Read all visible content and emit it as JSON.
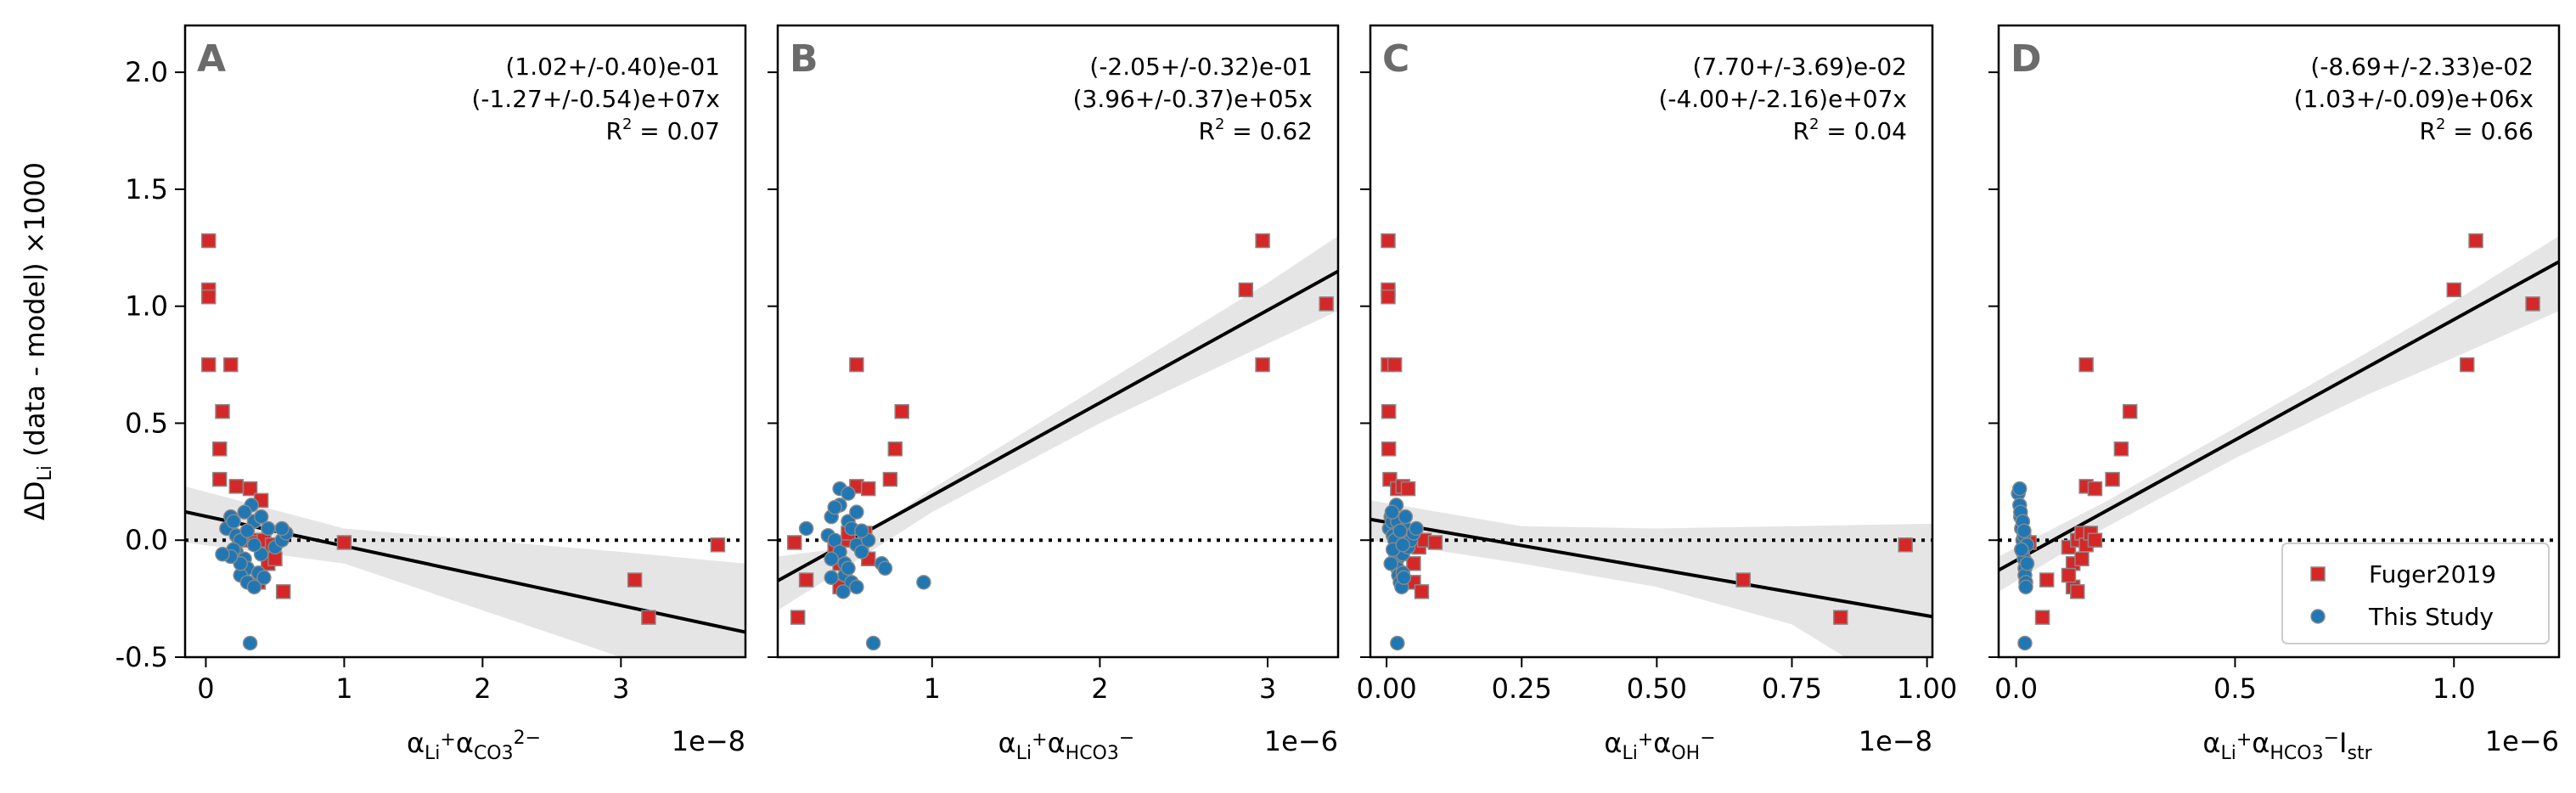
{
  "figure": {
    "ylabel": {
      "text": "ΔD",
      "sub": "Li",
      "rest": " (data - model) ×1000"
    },
    "legend": [
      {
        "label": "Fuger2019",
        "color": "#d62728",
        "marker": "square"
      },
      {
        "label": "This Study",
        "color": "#1f77b4",
        "marker": "circle"
      }
    ]
  },
  "chart_data": [
    {
      "panel": "A",
      "type": "scatter",
      "xlim": [
        -0.15,
        3.9
      ],
      "ylim": [
        -0.5,
        2.2
      ],
      "xticks": [
        0,
        1,
        2,
        3
      ],
      "yticks": [
        -0.5,
        0.0,
        0.5,
        1.0,
        1.5,
        2.0
      ],
      "offset": "1e−8",
      "xlabel_parts": [
        "α",
        "Li",
        "+",
        "α",
        "CO",
        "3",
        "2−"
      ],
      "annotation": [
        "(1.02+/-0.40)e-01",
        "(-1.27+/-0.54)e+07x",
        "R",
        "2",
        " = 0.07"
      ],
      "fit": {
        "intercept": 0.102,
        "slope": -0.127
      },
      "band": [
        [
          -0.15,
          0.23,
          -0.01
        ],
        [
          1.0,
          0.05,
          -0.1
        ],
        [
          2.0,
          0.0,
          -0.3
        ],
        [
          3.0,
          -0.05,
          -0.5
        ],
        [
          3.9,
          -0.1,
          -0.7
        ]
      ],
      "series": [
        {
          "name": "Fuger2019",
          "points": [
            [
              0.02,
              1.28
            ],
            [
              0.02,
              1.07
            ],
            [
              0.02,
              1.04
            ],
            [
              0.02,
              0.75
            ],
            [
              0.12,
              0.55
            ],
            [
              0.1,
              0.39
            ],
            [
              0.1,
              0.26
            ],
            [
              0.18,
              0.75
            ],
            [
              0.22,
              0.23
            ],
            [
              0.32,
              0.22
            ],
            [
              0.4,
              0.17
            ],
            [
              0.32,
              0.0
            ],
            [
              0.36,
              -0.01
            ],
            [
              0.42,
              -0.03
            ],
            [
              0.38,
              -0.18
            ],
            [
              0.45,
              -0.1
            ],
            [
              0.42,
              0.0
            ],
            [
              0.48,
              -0.02
            ],
            [
              0.56,
              -0.22
            ],
            [
              0.5,
              -0.08
            ],
            [
              1.0,
              -0.01
            ],
            [
              3.1,
              -0.17
            ],
            [
              3.2,
              -0.33
            ],
            [
              3.7,
              -0.02
            ]
          ]
        },
        {
          "name": "This Study",
          "points": [
            [
              0.15,
              0.05
            ],
            [
              0.18,
              0.1
            ],
            [
              0.2,
              0.08
            ],
            [
              0.22,
              0.02
            ],
            [
              0.25,
              0.0
            ],
            [
              0.22,
              -0.05
            ],
            [
              0.28,
              -0.08
            ],
            [
              0.3,
              -0.12
            ],
            [
              0.25,
              -0.15
            ],
            [
              0.3,
              -0.18
            ],
            [
              0.35,
              -0.2
            ],
            [
              0.38,
              -0.14
            ],
            [
              0.4,
              -0.06
            ],
            [
              0.33,
              0.15
            ],
            [
              0.35,
              0.08
            ],
            [
              0.45,
              0.05
            ],
            [
              0.5,
              -0.03
            ],
            [
              0.55,
              0.0
            ],
            [
              0.58,
              0.03
            ],
            [
              0.55,
              0.05
            ],
            [
              0.32,
              -0.44
            ],
            [
              0.28,
              0.12
            ],
            [
              0.25,
              -0.1
            ],
            [
              0.2,
              -0.04
            ],
            [
              0.18,
              -0.07
            ],
            [
              0.12,
              -0.06
            ],
            [
              0.3,
              0.04
            ],
            [
              0.35,
              -0.02
            ],
            [
              0.42,
              -0.16
            ],
            [
              0.4,
              0.1
            ]
          ]
        }
      ]
    },
    {
      "panel": "B",
      "type": "scatter",
      "xlim": [
        0.08,
        3.42
      ],
      "ylim": [
        -0.5,
        2.2
      ],
      "xticks": [
        1,
        2,
        3
      ],
      "yticks": [
        -0.5,
        0.0,
        0.5,
        1.0,
        1.5,
        2.0
      ],
      "offset": "1e−6",
      "xlabel_parts": [
        "α",
        "Li",
        "+",
        "α",
        "HCO",
        "3",
        "−"
      ],
      "annotation": [
        "(-2.05+/-0.32)e-01",
        "(3.96+/-0.37)e+05x",
        "R",
        "2",
        " = 0.62"
      ],
      "fit": {
        "intercept": -0.205,
        "slope": 0.396
      },
      "band": [
        [
          0.08,
          -0.07,
          -0.3
        ],
        [
          0.5,
          -0.03,
          -0.11
        ],
        [
          1.0,
          0.22,
          0.12
        ],
        [
          2.0,
          0.66,
          0.5
        ],
        [
          3.0,
          1.1,
          0.84
        ],
        [
          3.42,
          1.3,
          0.98
        ]
      ],
      "series": [
        {
          "name": "Fuger2019",
          "points": [
            [
              0.18,
              -0.01
            ],
            [
              0.2,
              -0.33
            ],
            [
              0.25,
              -0.17
            ],
            [
              0.42,
              -0.03
            ],
            [
              0.45,
              -0.1
            ],
            [
              0.45,
              -0.2
            ],
            [
              0.5,
              0.0
            ],
            [
              0.5,
              0.03
            ],
            [
              0.55,
              0.75
            ],
            [
              0.55,
              0.23
            ],
            [
              0.58,
              -0.02
            ],
            [
              0.6,
              0.03
            ],
            [
              0.62,
              0.22
            ],
            [
              0.62,
              -0.08
            ],
            [
              0.75,
              0.26
            ],
            [
              0.78,
              0.39
            ],
            [
              0.82,
              0.55
            ],
            [
              2.87,
              1.07
            ],
            [
              2.97,
              1.28
            ],
            [
              2.97,
              0.75
            ],
            [
              3.35,
              1.01
            ]
          ]
        },
        {
          "name": "This Study",
          "points": [
            [
              0.25,
              0.05
            ],
            [
              0.38,
              0.02
            ],
            [
              0.4,
              0.1
            ],
            [
              0.42,
              0.0
            ],
            [
              0.45,
              -0.05
            ],
            [
              0.45,
              0.22
            ],
            [
              0.45,
              0.15
            ],
            [
              0.48,
              -0.1
            ],
            [
              0.48,
              -0.15
            ],
            [
              0.5,
              0.2
            ],
            [
              0.5,
              0.08
            ],
            [
              0.5,
              -0.12
            ],
            [
              0.52,
              -0.18
            ],
            [
              0.52,
              0.05
            ],
            [
              0.55,
              -0.02
            ],
            [
              0.55,
              0.12
            ],
            [
              0.55,
              -0.2
            ],
            [
              0.58,
              -0.05
            ],
            [
              0.62,
              0.0
            ],
            [
              0.65,
              -0.44
            ],
            [
              0.7,
              -0.1
            ],
            [
              0.72,
              -0.12
            ],
            [
              0.95,
              -0.18
            ],
            [
              0.4,
              -0.08
            ],
            [
              0.42,
              0.14
            ],
            [
              0.47,
              -0.22
            ],
            [
              0.58,
              0.04
            ],
            [
              0.4,
              -0.16
            ]
          ]
        }
      ]
    },
    {
      "panel": "C",
      "type": "scatter",
      "xlim": [
        -0.03,
        1.01
      ],
      "ylim": [
        -0.5,
        2.2
      ],
      "xticks": [
        0.0,
        0.25,
        0.5,
        0.75,
        1.0
      ],
      "xticklabels": [
        "0.00",
        "0.25",
        "0.50",
        "0.75",
        "1.00"
      ],
      "yticks": [
        -0.5,
        0.0,
        0.5,
        1.0,
        1.5,
        2.0
      ],
      "offset": "1e−8",
      "xlabel_parts": [
        "α",
        "Li",
        "+",
        "α",
        "OH",
        "",
        "−"
      ],
      "annotation": [
        "(7.70+/-3.69)e-02",
        "(-4.00+/-2.16)e+07x",
        "R",
        "2",
        " = 0.04"
      ],
      "fit": {
        "intercept": 0.077,
        "slope": -0.4
      },
      "band": [
        [
          -0.03,
          0.17,
          0.0
        ],
        [
          0.25,
          0.06,
          -0.1
        ],
        [
          0.5,
          0.05,
          -0.2
        ],
        [
          0.75,
          0.06,
          -0.36
        ],
        [
          1.01,
          0.07,
          -0.73
        ]
      ],
      "series": [
        {
          "name": "Fuger2019",
          "points": [
            [
              0.003,
              1.28
            ],
            [
              0.003,
              1.07
            ],
            [
              0.003,
              1.04
            ],
            [
              0.003,
              0.75
            ],
            [
              0.015,
              0.75
            ],
            [
              0.004,
              0.55
            ],
            [
              0.004,
              0.39
            ],
            [
              0.006,
              0.26
            ],
            [
              0.02,
              0.22
            ],
            [
              0.03,
              0.23
            ],
            [
              0.04,
              0.22
            ],
            [
              0.04,
              0.0
            ],
            [
              0.05,
              -0.1
            ],
            [
              0.05,
              -0.18
            ],
            [
              0.06,
              -0.03
            ],
            [
              0.065,
              -0.22
            ],
            [
              0.07,
              0.0
            ],
            [
              0.09,
              -0.01
            ],
            [
              0.66,
              -0.17
            ],
            [
              0.84,
              -0.33
            ],
            [
              0.96,
              -0.02
            ]
          ]
        },
        {
          "name": "This Study",
          "points": [
            [
              0.005,
              0.05
            ],
            [
              0.008,
              0.1
            ],
            [
              0.01,
              0.08
            ],
            [
              0.012,
              0.02
            ],
            [
              0.015,
              0.0
            ],
            [
              0.015,
              -0.05
            ],
            [
              0.02,
              -0.08
            ],
            [
              0.02,
              -0.12
            ],
            [
              0.022,
              -0.15
            ],
            [
              0.025,
              -0.18
            ],
            [
              0.028,
              -0.2
            ],
            [
              0.03,
              -0.14
            ],
            [
              0.03,
              -0.06
            ],
            [
              0.018,
              0.15
            ],
            [
              0.02,
              0.08
            ],
            [
              0.035,
              0.05
            ],
            [
              0.04,
              -0.03
            ],
            [
              0.045,
              0.0
            ],
            [
              0.05,
              0.03
            ],
            [
              0.055,
              0.05
            ],
            [
              0.02,
              -0.44
            ],
            [
              0.01,
              0.12
            ],
            [
              0.008,
              -0.1
            ],
            [
              0.012,
              -0.04
            ],
            [
              0.025,
              0.04
            ],
            [
              0.03,
              -0.02
            ],
            [
              0.032,
              -0.16
            ],
            [
              0.035,
              0.1
            ]
          ]
        }
      ]
    },
    {
      "panel": "D",
      "type": "scatter",
      "xlim": [
        -0.04,
        1.24
      ],
      "ylim": [
        -0.5,
        2.2
      ],
      "xticks": [
        0.0,
        0.5,
        1.0
      ],
      "xticklabels": [
        "0.0",
        "0.5",
        "1.0"
      ],
      "yticks": [
        -0.5,
        0.0,
        0.5,
        1.0,
        1.5,
        2.0
      ],
      "offset": "1e−6",
      "xlabel_parts": [
        "α",
        "Li",
        "+",
        "α",
        "HCO",
        "3",
        "−",
        "I",
        "str"
      ],
      "annotation": [
        "(-8.69+/-2.33)e-02",
        "(1.03+/-0.09)e+06x",
        "R",
        "2",
        " = 0.66"
      ],
      "fit": {
        "intercept": -0.0869,
        "slope": 1.03
      },
      "band": [
        [
          -0.04,
          -0.07,
          -0.22
        ],
        [
          0.2,
          0.16,
          0.05
        ],
        [
          0.5,
          0.48,
          0.35
        ],
        [
          0.8,
          0.8,
          0.62
        ],
        [
          1.0,
          1.02,
          0.78
        ],
        [
          1.24,
          1.3,
          0.98
        ]
      ],
      "series": [
        {
          "name": "Fuger2019",
          "points": [
            [
              0.03,
              -0.01
            ],
            [
              0.06,
              -0.33
            ],
            [
              0.07,
              -0.17
            ],
            [
              0.12,
              -0.03
            ],
            [
              0.13,
              -0.1
            ],
            [
              0.13,
              -0.2
            ],
            [
              0.14,
              0.0
            ],
            [
              0.15,
              0.03
            ],
            [
              0.16,
              0.75
            ],
            [
              0.16,
              0.23
            ],
            [
              0.16,
              -0.02
            ],
            [
              0.17,
              0.03
            ],
            [
              0.18,
              0.22
            ],
            [
              0.15,
              -0.08
            ],
            [
              0.22,
              0.26
            ],
            [
              0.24,
              0.39
            ],
            [
              0.26,
              0.55
            ],
            [
              0.12,
              -0.15
            ],
            [
              0.14,
              -0.22
            ],
            [
              0.18,
              0.0
            ],
            [
              1.0,
              1.07
            ],
            [
              1.05,
              1.28
            ],
            [
              1.03,
              0.75
            ],
            [
              1.18,
              1.01
            ]
          ]
        },
        {
          "name": "This Study",
          "points": [
            [
              0.005,
              0.2
            ],
            [
              0.008,
              0.15
            ],
            [
              0.01,
              0.1
            ],
            [
              0.012,
              0.05
            ],
            [
              0.015,
              0.0
            ],
            [
              0.015,
              -0.05
            ],
            [
              0.018,
              -0.08
            ],
            [
              0.02,
              -0.12
            ],
            [
              0.02,
              -0.15
            ],
            [
              0.022,
              -0.18
            ],
            [
              0.022,
              -0.2
            ],
            [
              0.025,
              -0.1
            ],
            [
              0.008,
              0.22
            ],
            [
              0.01,
              0.12
            ],
            [
              0.015,
              0.08
            ],
            [
              0.018,
              0.02
            ],
            [
              0.02,
              -0.44
            ],
            [
              0.025,
              -0.02
            ],
            [
              0.012,
              -0.04
            ],
            [
              0.018,
              0.04
            ]
          ]
        }
      ]
    }
  ]
}
